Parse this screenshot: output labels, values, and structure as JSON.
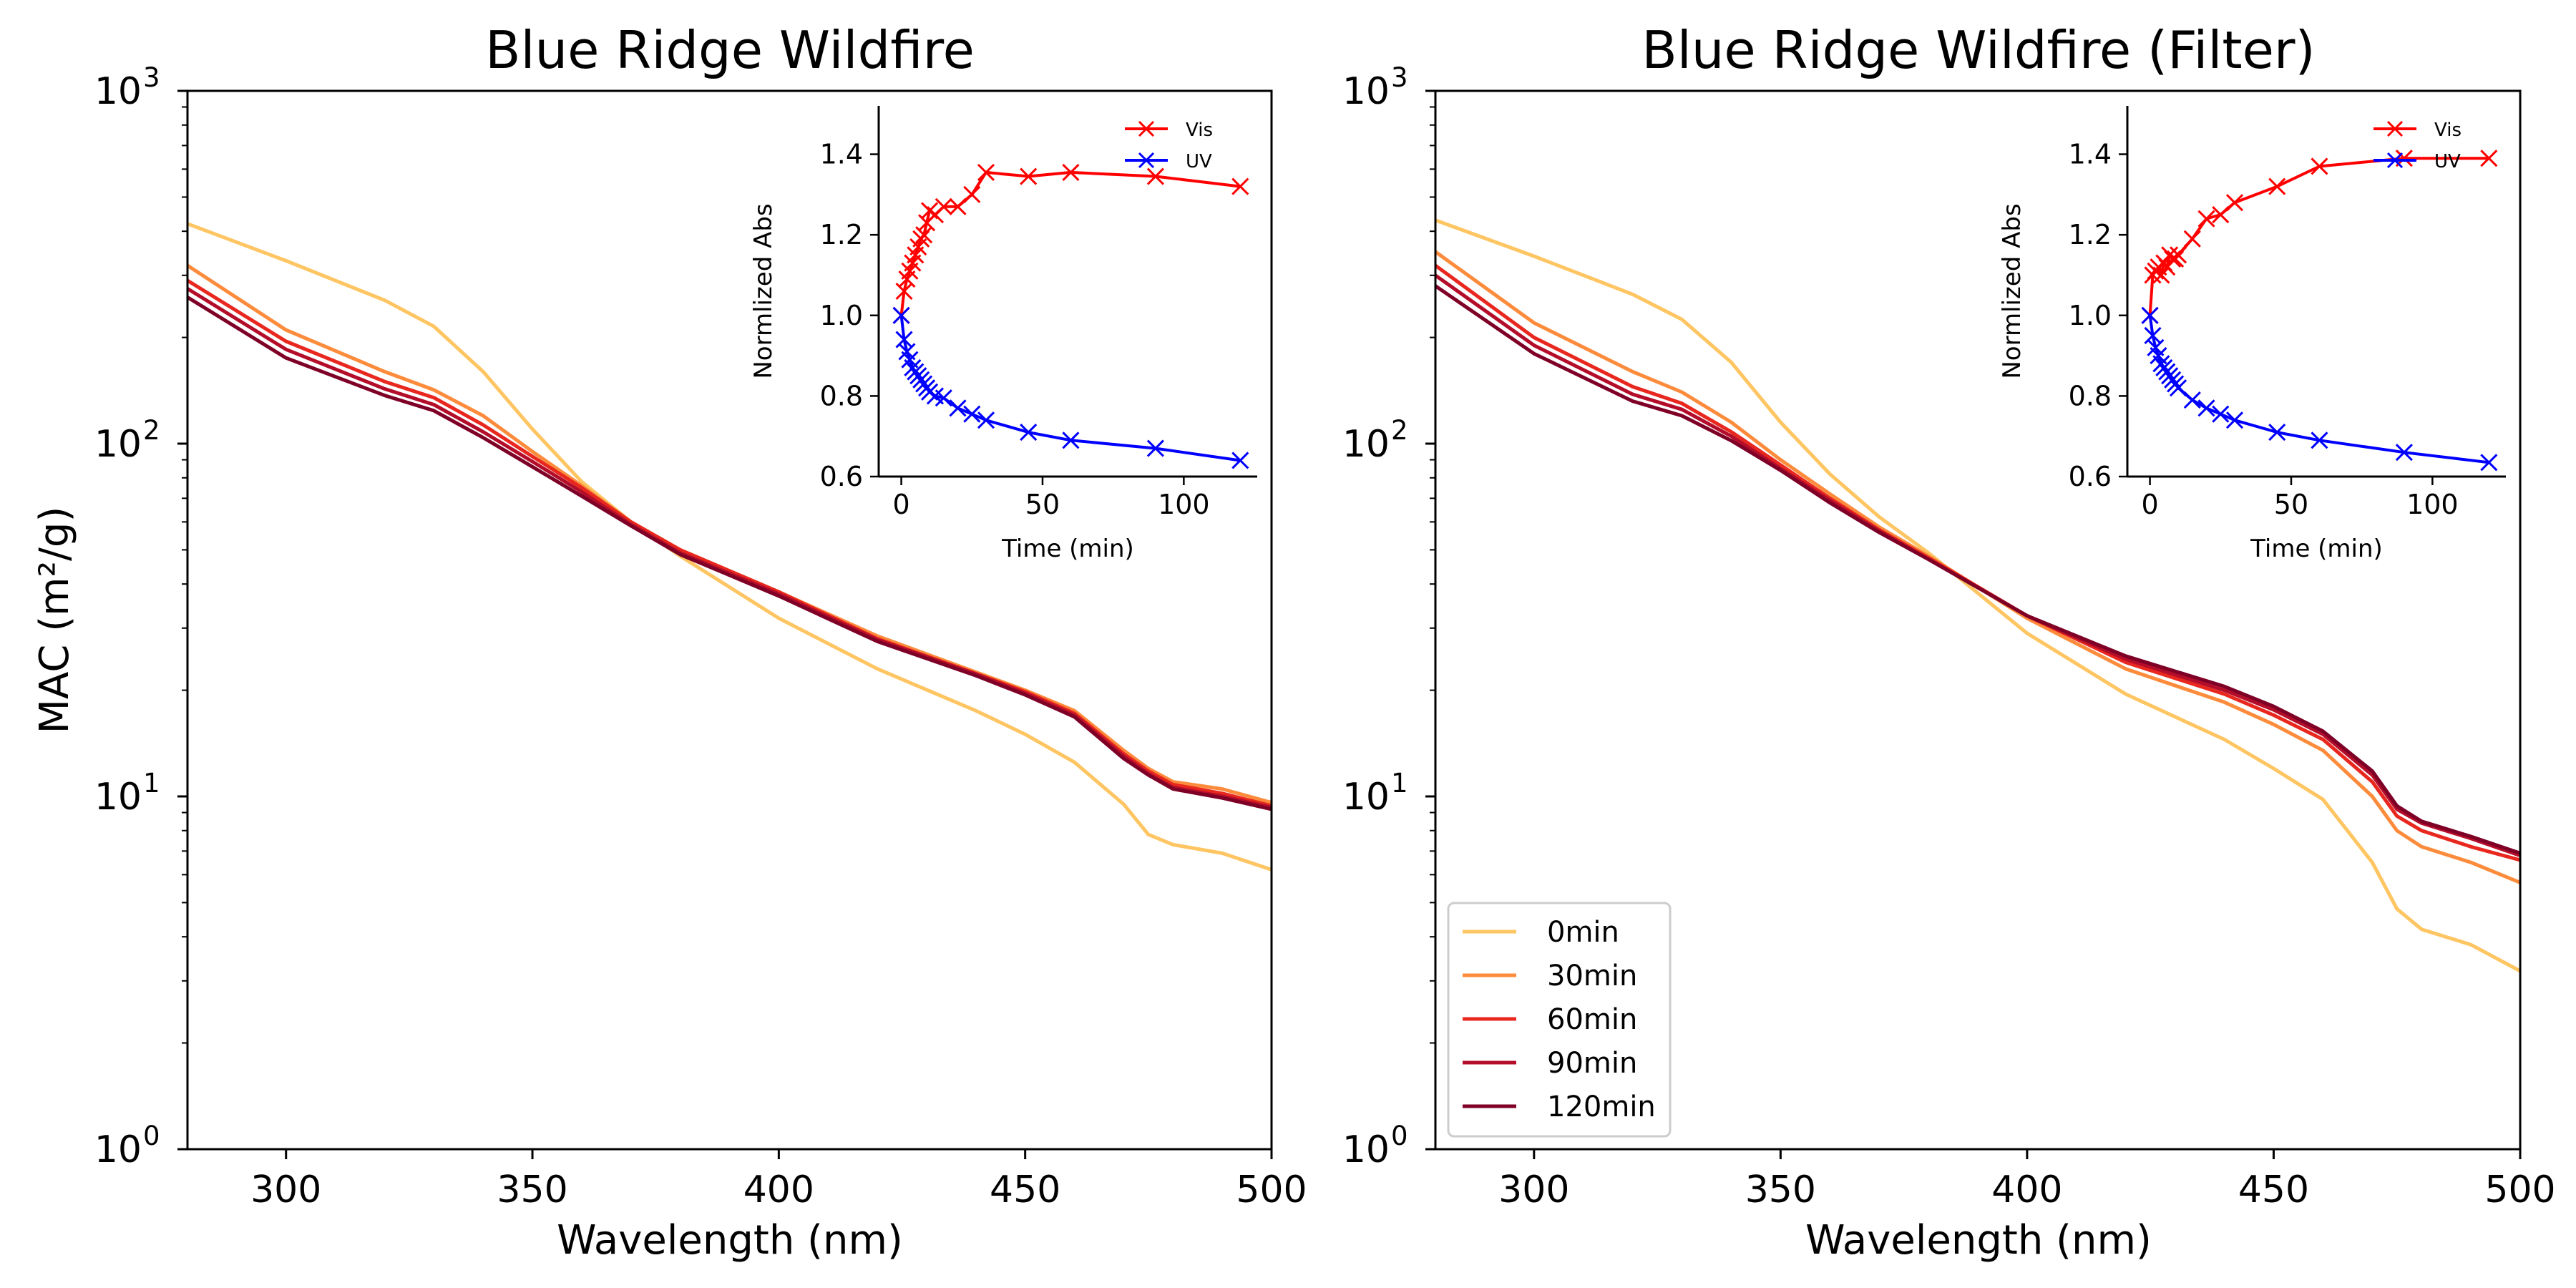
{
  "chart_data": [
    {
      "type": "line",
      "title": "Blue Ridge Wildfire",
      "xlabel": "Wavelength (nm)",
      "ylabel": "MAC (m²/g)",
      "xlim": [
        280,
        500
      ],
      "ylim": [
        1,
        1000
      ],
      "yscale": "log",
      "xticks": [
        "300",
        "350",
        "400",
        "450",
        "500"
      ],
      "yticks": [
        {
          "base": "10",
          "exp": "0"
        },
        {
          "base": "10",
          "exp": "1"
        },
        {
          "base": "10",
          "exp": "2"
        },
        {
          "base": "10",
          "exp": "3"
        }
      ],
      "grid": false,
      "x": [
        280,
        300,
        320,
        330,
        340,
        350,
        360,
        370,
        380,
        400,
        420,
        440,
        450,
        460,
        470,
        475,
        480,
        490,
        500
      ],
      "series": [
        {
          "name": "0min",
          "color": "#fec562",
          "values": [
            420,
            330,
            255,
            215,
            160,
            110,
            78,
            60,
            48,
            32,
            23,
            17.5,
            15,
            12.5,
            9.5,
            7.8,
            7.3,
            6.9,
            6.2
          ]
        },
        {
          "name": "30min",
          "color": "#fd8b3c",
          "values": [
            320,
            210,
            160,
            142,
            120,
            95,
            76,
            60,
            50,
            38,
            28.5,
            22.5,
            20,
            17.5,
            13.5,
            12,
            11,
            10.5,
            9.6
          ]
        },
        {
          "name": "60min",
          "color": "#e8271f",
          "values": [
            290,
            195,
            150,
            135,
            113,
            92,
            75,
            60,
            50,
            38,
            28,
            22.3,
            19.8,
            17.2,
            13.2,
            11.8,
            10.8,
            10.2,
            9.4
          ]
        },
        {
          "name": "90min",
          "color": "#b30d2a",
          "values": [
            275,
            185,
            143,
            129,
            108,
            89,
            73,
            59,
            49,
            37.5,
            27.8,
            22.2,
            19.6,
            17,
            13,
            11.6,
            10.6,
            10,
            9.3
          ]
        },
        {
          "name": "120min",
          "color": "#7e0026",
          "values": [
            260,
            175,
            137,
            124,
            104,
            86,
            71,
            58.5,
            48.5,
            37,
            27.5,
            22,
            19.4,
            16.8,
            12.8,
            11.5,
            10.5,
            9.9,
            9.2
          ]
        }
      ],
      "inset": {
        "xlabel": "Time (min)",
        "ylabel": "Normlized Abs",
        "xlim": [
          -8,
          126
        ],
        "ylim": [
          0.6,
          1.52
        ],
        "xticks": [
          "0",
          "50",
          "100"
        ],
        "yticks": [
          "0.6",
          "0.8",
          "1.0",
          "1.2",
          "1.4"
        ],
        "legend": "top-right",
        "series": [
          {
            "name": "Vis",
            "color": "#ff0000",
            "marker": "x",
            "x": [
              0,
              1,
              2,
              3,
              4,
              5,
              6,
              7,
              8,
              9,
              10,
              12,
              15,
              20,
              25,
              30,
              45,
              60,
              90,
              120
            ],
            "values": [
              1.0,
              1.06,
              1.09,
              1.11,
              1.13,
              1.15,
              1.17,
              1.19,
              1.2,
              1.23,
              1.26,
              1.25,
              1.27,
              1.27,
              1.3,
              1.355,
              1.345,
              1.355,
              1.345,
              1.32
            ]
          },
          {
            "name": "UV",
            "color": "#0000ff",
            "marker": "x",
            "x": [
              0,
              1,
              2,
              3,
              4,
              5,
              6,
              7,
              8,
              9,
              10,
              12,
              15,
              20,
              25,
              30,
              45,
              60,
              90,
              120
            ],
            "values": [
              1.0,
              0.94,
              0.91,
              0.89,
              0.87,
              0.86,
              0.85,
              0.84,
              0.83,
              0.82,
              0.81,
              0.8,
              0.795,
              0.77,
              0.755,
              0.74,
              0.71,
              0.69,
              0.67,
              0.64
            ]
          }
        ]
      }
    },
    {
      "type": "line",
      "title": "Blue Ridge Wildfire (Filter)",
      "xlabel": "Wavelength (nm)",
      "ylabel": "",
      "xlim": [
        280,
        500
      ],
      "ylim": [
        1,
        1000
      ],
      "yscale": "log",
      "xticks": [
        "300",
        "350",
        "400",
        "450",
        "500"
      ],
      "yticks": [
        {
          "base": "10",
          "exp": "0"
        },
        {
          "base": "10",
          "exp": "1"
        },
        {
          "base": "10",
          "exp": "2"
        },
        {
          "base": "10",
          "exp": "3"
        }
      ],
      "grid": false,
      "legend": "bottom-left",
      "x": [
        280,
        300,
        320,
        330,
        340,
        350,
        360,
        370,
        380,
        400,
        420,
        440,
        450,
        460,
        470,
        475,
        480,
        490,
        500
      ],
      "series": [
        {
          "name": "0min",
          "color": "#fec562",
          "values": [
            430,
            340,
            265,
            225,
            170,
            115,
            82,
            62,
            49,
            29,
            19.5,
            14.5,
            12,
            9.8,
            6.5,
            4.8,
            4.2,
            3.8,
            3.2
          ]
        },
        {
          "name": "30min",
          "color": "#fd8b3c",
          "values": [
            350,
            220,
            160,
            140,
            115,
            90,
            72,
            58,
            48,
            32,
            23,
            18.5,
            16,
            13.5,
            10,
            8,
            7.2,
            6.5,
            5.7
          ]
        },
        {
          "name": "60min",
          "color": "#e8271f",
          "values": [
            320,
            200,
            145,
            130,
            108,
            87,
            70,
            57,
            47.5,
            32.5,
            24,
            19.5,
            17,
            14.5,
            11,
            8.8,
            8,
            7.2,
            6.6
          ]
        },
        {
          "name": "90min",
          "color": "#b30d2a",
          "values": [
            300,
            190,
            138,
            125,
            105,
            85,
            69,
            56.5,
            47,
            32.5,
            24.5,
            20,
            17.6,
            15,
            11.5,
            9.2,
            8.4,
            7.6,
            6.8
          ]
        },
        {
          "name": "120min",
          "color": "#7e0026",
          "values": [
            280,
            180,
            132,
            120,
            102,
            84,
            68,
            56,
            47,
            32.5,
            25,
            20.5,
            18,
            15.3,
            11.8,
            9.4,
            8.5,
            7.7,
            6.9
          ]
        }
      ],
      "inset": {
        "xlabel": "Time (min)",
        "ylabel": "Normlized Abs",
        "xlim": [
          -8,
          126
        ],
        "ylim": [
          0.6,
          1.52
        ],
        "xticks": [
          "0",
          "50",
          "100"
        ],
        "yticks": [
          "0.6",
          "0.8",
          "1.0",
          "1.2",
          "1.4"
        ],
        "legend": "top-right",
        "series": [
          {
            "name": "Vis",
            "color": "#ff0000",
            "marker": "x",
            "x": [
              0,
              1,
              2,
              3,
              4,
              5,
              6,
              7,
              8,
              9,
              10,
              15,
              20,
              25,
              30,
              45,
              60,
              90,
              120
            ],
            "values": [
              1.0,
              1.1,
              1.11,
              1.12,
              1.1,
              1.13,
              1.12,
              1.15,
              1.14,
              1.14,
              1.15,
              1.19,
              1.24,
              1.25,
              1.28,
              1.32,
              1.37,
              1.39,
              1.39
            ]
          },
          {
            "name": "UV",
            "color": "#0000ff",
            "marker": "x",
            "x": [
              0,
              1,
              2,
              3,
              4,
              5,
              6,
              7,
              8,
              9,
              10,
              15,
              20,
              25,
              30,
              45,
              60,
              90,
              120
            ],
            "values": [
              1.0,
              0.95,
              0.92,
              0.9,
              0.88,
              0.87,
              0.86,
              0.85,
              0.84,
              0.83,
              0.82,
              0.79,
              0.77,
              0.755,
              0.74,
              0.71,
              0.69,
              0.66,
              0.635
            ]
          }
        ]
      }
    }
  ]
}
